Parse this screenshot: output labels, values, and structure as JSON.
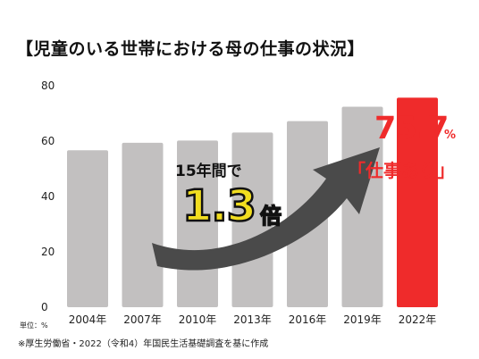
{
  "title": "【児童のいる世帯における母の仕事の状況】",
  "unit_note": "単位：%",
  "source_note": "※厚生労働省・2022（令和4）年国民生活基礎調査を基に作成",
  "annotation": {
    "growth_label": "15年間で",
    "growth_value": "1.3",
    "growth_unit": "倍",
    "highlight_value": "75.7",
    "highlight_unit": "%",
    "highlight_label": "「仕事あり」"
  },
  "colors": {
    "bar": "#c2c0c0",
    "highlight_bar": "#ef2b2b",
    "arrow": "#4a4a4a",
    "accent_yellow": "#f1dd1f"
  },
  "chart_data": {
    "type": "bar",
    "categories": [
      "2004年",
      "2007年",
      "2010年",
      "2013年",
      "2016年",
      "2019年",
      "2022年"
    ],
    "values": [
      56.7,
      59.4,
      60.2,
      63.1,
      67.2,
      72.4,
      75.7
    ],
    "highlight_index": 6,
    "ylim": [
      0,
      80
    ],
    "yticks": [
      0,
      20,
      40,
      60,
      80
    ],
    "grid": false
  }
}
